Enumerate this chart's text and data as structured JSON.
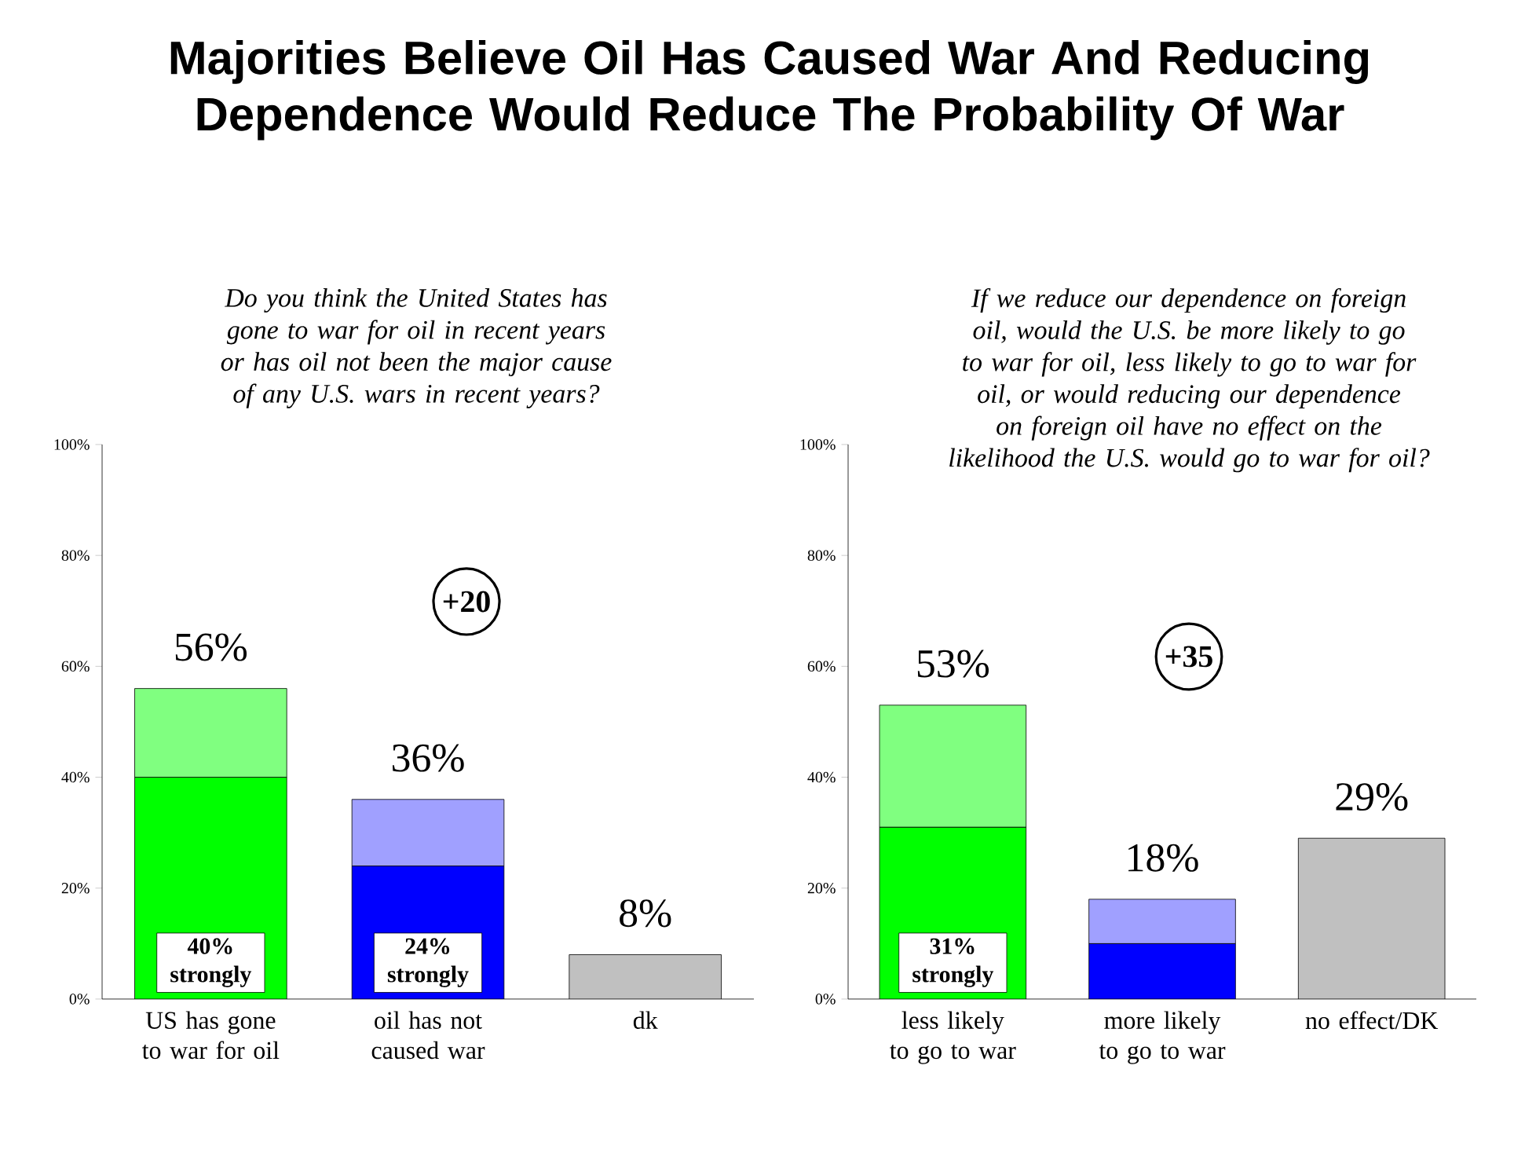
{
  "chart_data": [
    {
      "type": "bar",
      "stacked": true,
      "title": "Majorities Believe Oil Has Caused War And Reducing Dependence Would Reduce The Probability Of War",
      "subtitle": "Do you think the United States has gone to war for oil in recent years or has oil not been the major cause of any U.S. wars in recent years?",
      "categories": [
        "US has gone to war for oil",
        "oil has not caused war",
        "dk"
      ],
      "series": [
        {
          "colors": [
            "#00ff00",
            "#0000ff",
            "#c0c0c0"
          ],
          "values": [
            40,
            24,
            8
          ],
          "value_labels": [
            "40% strongly",
            "24% strongly",
            null
          ]
        },
        {
          "colors": [
            "#80ff80",
            "#a0a0ff",
            "#c0c0c0"
          ],
          "values": [
            16,
            12,
            null
          ]
        }
      ],
      "totals": [
        "56%",
        "36%",
        "8%"
      ],
      "annotations": [
        "+20"
      ],
      "ylim": [
        0,
        100
      ],
      "yticks": [
        {
          "value": 0,
          "label": "0%"
        },
        {
          "value": 20,
          "label": "20%"
        },
        {
          "value": 40,
          "label": "40%"
        },
        {
          "value": 60,
          "label": "60%"
        },
        {
          "value": 80,
          "label": "80%"
        },
        {
          "value": 100,
          "label": "100%"
        }
      ]
    },
    {
      "type": "bar",
      "stacked": true,
      "subtitle": "If we reduce our dependence on foreign oil, would the U.S. be more likely to go to war for oil, less likely to go to war for oil, or would reducing our dependence on foreign oil have no effect on the likelihood the U.S. would go to war for oil?",
      "categories": [
        "less likely to go to war",
        "more likely to go to war",
        "no effect/DK"
      ],
      "series": [
        {
          "colors": [
            "#00ff00",
            "#0000ff",
            "#c0c0c0"
          ],
          "values": [
            31,
            10,
            29
          ],
          "value_labels": [
            "31% strongly",
            null,
            null
          ]
        },
        {
          "colors": [
            "#80ff80",
            "#a0a0ff",
            "#c0c0c0"
          ],
          "values": [
            22,
            8,
            null
          ]
        }
      ],
      "totals": [
        "53%",
        "18%",
        "29%"
      ],
      "annotations": [
        "+35"
      ],
      "ylim": [
        0,
        100
      ],
      "yticks": [
        {
          "value": 0,
          "label": "0%"
        },
        {
          "value": 20,
          "label": "20%"
        },
        {
          "value": 40,
          "label": "40%"
        },
        {
          "value": 60,
          "label": "60%"
        },
        {
          "value": 80,
          "label": "80%"
        },
        {
          "value": 100,
          "label": "100%"
        }
      ]
    }
  ]
}
